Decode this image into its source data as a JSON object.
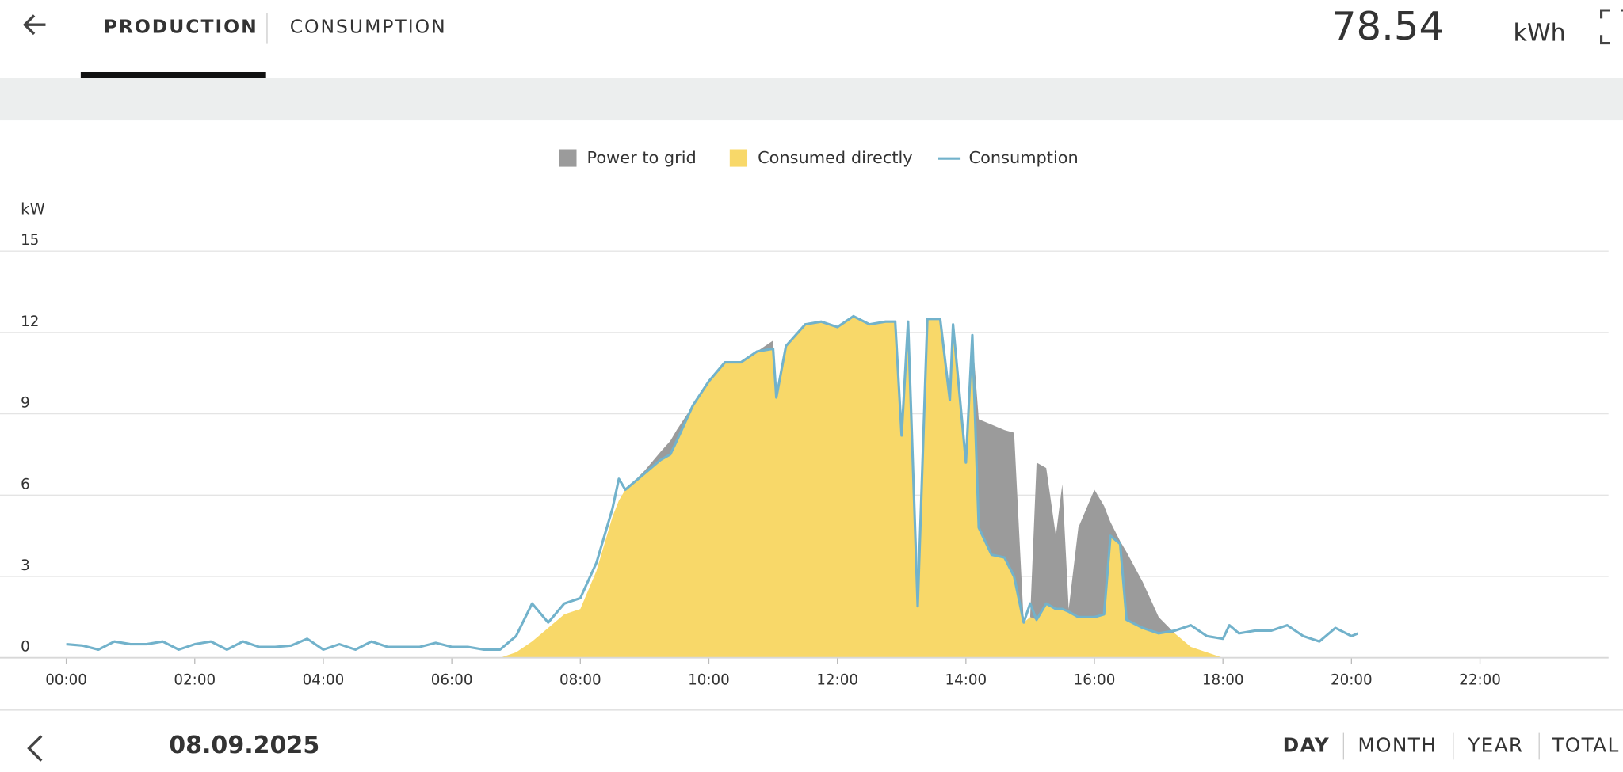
{
  "header": {
    "tabs": [
      "PRODUCTION",
      "CONSUMPTION"
    ],
    "active_tab": 0,
    "total": "78.54",
    "unit": "kWh"
  },
  "chart_data": {
    "type": "area",
    "y_label": "kW",
    "x": [
      0,
      0.25,
      0.5,
      0.75,
      1,
      1.25,
      1.5,
      1.75,
      2,
      2.25,
      2.5,
      2.75,
      3,
      3.25,
      3.5,
      3.75,
      4,
      4.25,
      4.5,
      4.75,
      5,
      5.25,
      5.5,
      5.75,
      6,
      6.25,
      6.5,
      6.75,
      7,
      7.25,
      7.5,
      7.75,
      8,
      8.25,
      8.5,
      8.6,
      8.7,
      9,
      9.25,
      9.4,
      9.5,
      9.75,
      10,
      10.25,
      10.5,
      10.75,
      11,
      11.05,
      11.2,
      11.5,
      11.75,
      12,
      12.25,
      12.5,
      12.75,
      12.9,
      13,
      13.1,
      13.25,
      13.4,
      13.6,
      13.75,
      13.8,
      14,
      14.1,
      14.2,
      14.4,
      14.6,
      14.75,
      14.9,
      15,
      15.1,
      15.25,
      15.4,
      15.5,
      15.6,
      15.75,
      16,
      16.15,
      16.25,
      16.4,
      16.5,
      16.75,
      17,
      17.25,
      17.5,
      17.75,
      18,
      18.1,
      18.25,
      18.5,
      18.75,
      19,
      19.25,
      19.5,
      19.75,
      20,
      20.1
    ],
    "series": [
      {
        "name": "Power to grid",
        "kind": "area",
        "color": "#9b9b9b",
        "values": [
          0,
          0,
          0,
          0,
          0,
          0,
          0,
          0,
          0,
          0,
          0,
          0,
          0,
          0,
          0,
          0,
          0,
          0,
          0,
          0,
          0,
          0,
          0,
          0,
          0,
          0,
          0,
          0,
          0,
          0,
          0,
          0,
          0,
          0,
          0,
          0,
          0,
          0.1,
          0.3,
          0.5,
          0.4,
          0,
          0,
          0,
          0,
          0,
          0.3,
          0,
          0,
          0,
          0,
          0,
          0,
          0,
          0,
          0,
          0,
          0,
          0,
          0,
          0,
          0,
          0,
          0,
          0,
          4.0,
          4.8,
          4.7,
          5.3,
          0,
          0,
          5.8,
          5.0,
          2.7,
          4.6,
          0.1,
          3.3,
          4.7,
          4.0,
          0.5,
          0.1,
          2.5,
          1.7,
          0.6,
          0,
          0,
          0,
          0,
          0,
          0,
          0,
          0,
          0,
          0,
          0,
          0,
          0,
          0
        ]
      },
      {
        "name": "Consumed directly",
        "kind": "area",
        "color": "#f8d869",
        "values": [
          0,
          0,
          0,
          0,
          0,
          0,
          0,
          0,
          0,
          0,
          0,
          0,
          0,
          0,
          0,
          0,
          0,
          0,
          0,
          0,
          0,
          0,
          0,
          0,
          0,
          0,
          0,
          0,
          0.2,
          0.6,
          1.1,
          1.6,
          1.8,
          3.2,
          5.2,
          5.8,
          6.2,
          6.8,
          7.3,
          7.5,
          8.0,
          9.3,
          10.2,
          10.9,
          10.9,
          11.3,
          11.4,
          9.6,
          11.5,
          12.3,
          12.4,
          12.2,
          12.6,
          12.3,
          12.4,
          12.4,
          8.2,
          12.4,
          1.9,
          12.5,
          12.5,
          9.5,
          12.3,
          7.2,
          11.9,
          4.8,
          3.8,
          3.7,
          3.0,
          1.3,
          1.5,
          1.4,
          2.0,
          1.8,
          1.8,
          1.7,
          1.5,
          1.5,
          1.6,
          4.5,
          4.2,
          1.4,
          1.1,
          0.9,
          0.9,
          0.4,
          0.2,
          0,
          0,
          0,
          0,
          0,
          0,
          0,
          0,
          0,
          0,
          0
        ]
      },
      {
        "name": "Consumption",
        "kind": "line",
        "color": "#72b2cb",
        "values": [
          0.5,
          0.45,
          0.3,
          0.6,
          0.5,
          0.5,
          0.6,
          0.3,
          0.5,
          0.6,
          0.3,
          0.6,
          0.4,
          0.4,
          0.45,
          0.7,
          0.3,
          0.5,
          0.3,
          0.6,
          0.4,
          0.4,
          0.4,
          0.55,
          0.4,
          0.4,
          0.3,
          0.3,
          0.8,
          2.0,
          1.3,
          2.0,
          2.2,
          3.5,
          5.5,
          6.6,
          6.2,
          6.8,
          7.3,
          7.5,
          8.0,
          9.3,
          10.2,
          10.9,
          10.9,
          11.3,
          11.4,
          9.6,
          11.5,
          12.3,
          12.4,
          12.2,
          12.6,
          12.3,
          12.4,
          12.4,
          8.2,
          12.4,
          1.9,
          12.5,
          12.5,
          9.5,
          12.3,
          7.2,
          11.9,
          4.8,
          3.8,
          3.7,
          3.0,
          1.3,
          2.0,
          1.4,
          2.0,
          1.8,
          1.8,
          1.7,
          1.5,
          1.5,
          1.6,
          4.5,
          4.2,
          1.4,
          1.1,
          0.9,
          1.0,
          1.2,
          0.8,
          0.7,
          1.2,
          0.9,
          1.0,
          1.0,
          1.2,
          0.8,
          0.6,
          1.1,
          0.8,
          0.9
        ]
      }
    ],
    "xlim": [
      0,
      24
    ],
    "ylim": [
      0,
      15
    ],
    "xticks": [
      {
        "value": 0,
        "label": "00:00"
      },
      {
        "value": 2,
        "label": "02:00"
      },
      {
        "value": 4,
        "label": "04:00"
      },
      {
        "value": 6,
        "label": "06:00"
      },
      {
        "value": 8,
        "label": "08:00"
      },
      {
        "value": 10,
        "label": "10:00"
      },
      {
        "value": 12,
        "label": "12:00"
      },
      {
        "value": 14,
        "label": "14:00"
      },
      {
        "value": 16,
        "label": "16:00"
      },
      {
        "value": 18,
        "label": "18:00"
      },
      {
        "value": 20,
        "label": "20:00"
      },
      {
        "value": 22,
        "label": "22:00"
      }
    ],
    "yticks": [
      0,
      3,
      6,
      9,
      12,
      15
    ],
    "grid": true
  },
  "footer": {
    "date": "08.09.2025",
    "periods": [
      "DAY",
      "MONTH",
      "YEAR",
      "TOTAL"
    ],
    "active_period": 0
  }
}
